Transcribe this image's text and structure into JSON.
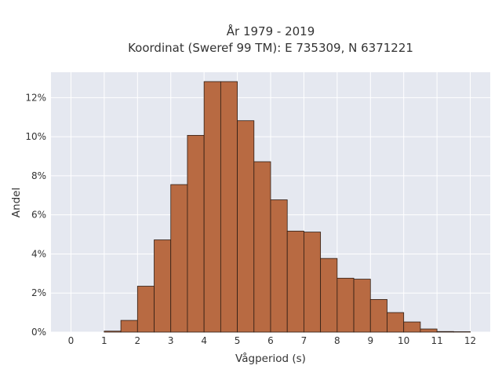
{
  "chart_data": {
    "type": "bar",
    "title_line1": "År 1979 - 2019",
    "title_line2": "Koordinat (Sweref 99 TM): E 735309, N 6371221",
    "xlabel": "Vågperiod (s)",
    "ylabel": "Andel",
    "x_ticks": [
      "0",
      "1",
      "2",
      "3",
      "4",
      "5",
      "6",
      "7",
      "8",
      "9",
      "10",
      "11",
      "12"
    ],
    "y_ticks": [
      "0%",
      "2%",
      "4%",
      "6%",
      "8%",
      "10%",
      "12%"
    ],
    "xlim": [
      -0.6,
      12.6
    ],
    "ylim": [
      0,
      13.3
    ],
    "bin_width": 0.5,
    "bins_start": [
      1,
      1.5,
      2,
      2.5,
      3,
      3.5,
      4,
      4.5,
      5,
      5.5,
      6,
      6.5,
      7,
      7.5,
      8,
      8.5,
      9,
      9.5,
      10,
      10.5,
      11,
      11.5
    ],
    "values": [
      0.05,
      0.6,
      2.35,
      4.72,
      7.55,
      10.07,
      12.82,
      12.82,
      10.82,
      8.72,
      6.77,
      5.17,
      5.12,
      3.77,
      2.76,
      2.71,
      1.67,
      1.0,
      0.52,
      0.16,
      0.03,
      0.02
    ],
    "grid": true,
    "colors": {
      "bar_fill": "#b86a42",
      "bar_edge": "#2e1d14",
      "plot_bg": "#e5e8f0",
      "grid": "#ffffff"
    }
  }
}
